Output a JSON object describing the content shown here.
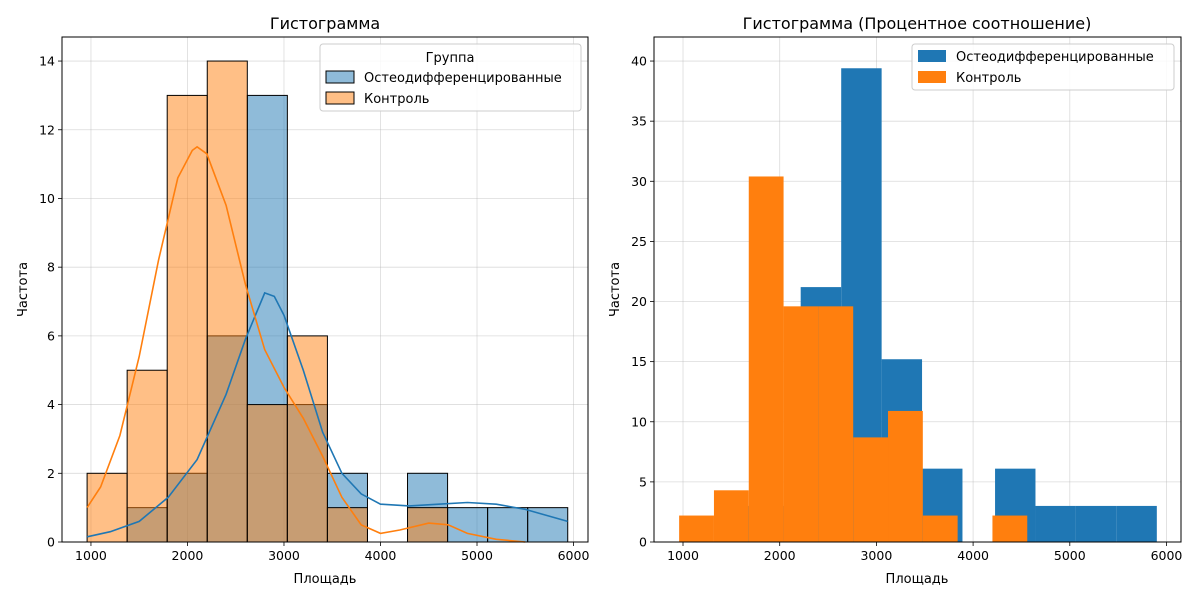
{
  "chart_data": [
    {
      "type": "bar",
      "subtype": "histogram-with-kde",
      "title": "Гистограмма",
      "xlabel": "Площадь",
      "ylabel": "Частота",
      "xlim": [
        700,
        6150
      ],
      "ylim": [
        0,
        14.7
      ],
      "xticks": [
        1000,
        2000,
        3000,
        4000,
        5000,
        6000
      ],
      "yticks": [
        0,
        2,
        4,
        6,
        8,
        10,
        12,
        14
      ],
      "grid": true,
      "legend": {
        "title": "Группа",
        "placement": "top-right"
      },
      "bin_edges": [
        960,
        1375,
        1790,
        2205,
        2620,
        3035,
        3450,
        3865,
        4280,
        4695,
        5110,
        5525,
        5940
      ],
      "series": [
        {
          "name": "Остеодифференцированные",
          "color": "#1f77b4",
          "counts": [
            0,
            1,
            2,
            6,
            13,
            4,
            2,
            0,
            2,
            1,
            1,
            1
          ],
          "kde": [
            [
              960,
              0.15
            ],
            [
              1200,
              0.3
            ],
            [
              1500,
              0.6
            ],
            [
              1800,
              1.3
            ],
            [
              2100,
              2.4
            ],
            [
              2400,
              4.3
            ],
            [
              2600,
              5.9
            ],
            [
              2800,
              7.25
            ],
            [
              2900,
              7.15
            ],
            [
              3000,
              6.6
            ],
            [
              3200,
              5.0
            ],
            [
              3400,
              3.2
            ],
            [
              3600,
              2.0
            ],
            [
              3800,
              1.4
            ],
            [
              4000,
              1.1
            ],
            [
              4300,
              1.05
            ],
            [
              4600,
              1.1
            ],
            [
              4900,
              1.15
            ],
            [
              5200,
              1.1
            ],
            [
              5500,
              0.95
            ],
            [
              5940,
              0.6
            ]
          ]
        },
        {
          "name": "Контроль",
          "color": "#ff7f0e",
          "counts": [
            2,
            5,
            13,
            14,
            4,
            6,
            1,
            0,
            1,
            0,
            0,
            0
          ],
          "kde": [
            [
              960,
              1.0
            ],
            [
              1100,
              1.6
            ],
            [
              1300,
              3.1
            ],
            [
              1500,
              5.4
            ],
            [
              1700,
              8.2
            ],
            [
              1900,
              10.6
            ],
            [
              2050,
              11.4
            ],
            [
              2100,
              11.5
            ],
            [
              2200,
              11.3
            ],
            [
              2400,
              9.8
            ],
            [
              2600,
              7.5
            ],
            [
              2800,
              5.6
            ],
            [
              3000,
              4.5
            ],
            [
              3200,
              3.6
            ],
            [
              3400,
              2.5
            ],
            [
              3600,
              1.3
            ],
            [
              3800,
              0.5
            ],
            [
              4000,
              0.25
            ],
            [
              4200,
              0.35
            ],
            [
              4500,
              0.55
            ],
            [
              4700,
              0.5
            ],
            [
              4900,
              0.25
            ],
            [
              5200,
              0.08
            ],
            [
              5500,
              0.0
            ]
          ]
        }
      ]
    },
    {
      "type": "bar",
      "subtype": "histogram-percent",
      "title": "Гистограмма (Процентное соотношение)",
      "xlabel": "Площадь",
      "ylabel": "Частота",
      "xlim": [
        700,
        6150
      ],
      "ylim": [
        0,
        42
      ],
      "xticks": [
        1000,
        2000,
        3000,
        4000,
        5000,
        6000
      ],
      "yticks": [
        0,
        5,
        10,
        15,
        20,
        25,
        30,
        35,
        40
      ],
      "grid": true,
      "legend": {
        "placement": "top-right"
      },
      "series": [
        {
          "name": "Остеодифференцированные",
          "color": "#1f77b4",
          "bin_edges": [
            1375,
            2217,
            2636,
            3054,
            3472,
            3890,
            4227,
            4645,
            5063,
            5481,
            5900
          ],
          "values": [
            3.0,
            21.2,
            39.4,
            15.2,
            6.1,
            0,
            6.1,
            3.0,
            3.0,
            3.0
          ]
        },
        {
          "name": "Контроль",
          "color": "#ff7f0e",
          "bin_edges": [
            960,
            1320,
            1680,
            2040,
            2400,
            2760,
            3120,
            3480,
            3840,
            4200,
            4560
          ],
          "values": [
            2.2,
            4.3,
            30.4,
            19.6,
            19.6,
            8.7,
            10.9,
            2.2,
            0,
            2.2
          ]
        }
      ]
    }
  ]
}
